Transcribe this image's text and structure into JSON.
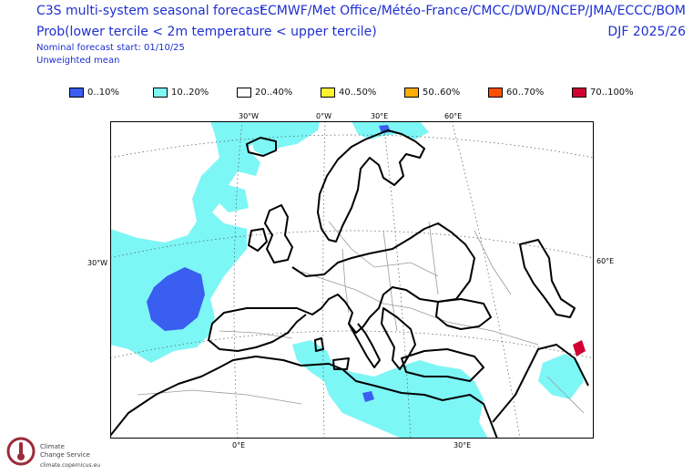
{
  "header": {
    "title_line1": "C3S multi-system seasonal forecast",
    "title_line2": "Prob(lower tercile < 2m temperature < upper tercile)",
    "nominal_start": "Nominal forecast start: 01/10/25",
    "weighting": "Unweighted mean",
    "systems": "ECMWF/Met Office/Météo-France/CMCC/DWD/NCEP/JMA/ECCC/BOM",
    "season": "DJF 2025/26"
  },
  "legend": [
    {
      "label": "0..10%",
      "color": "#3a5ef0"
    },
    {
      "label": "10..20%",
      "color": "#7df6f6"
    },
    {
      "label": "20..40%",
      "color": "#ffffff"
    },
    {
      "label": "40..50%",
      "color": "#fff12c"
    },
    {
      "label": "50..60%",
      "color": "#ffae00"
    },
    {
      "label": "60..70%",
      "color": "#ff4f00"
    },
    {
      "label": "70..100%",
      "color": "#d10030"
    }
  ],
  "map": {
    "top_ticks": [
      "30°W",
      "0°W",
      "30°E",
      "60°E"
    ],
    "left_tick": "30°W",
    "right_tick": "60°E",
    "bottom_ticks": [
      "0°E",
      "30°E"
    ],
    "colors": {
      "ocean": "#ffffff",
      "cyan": "#7df6f6",
      "blue": "#3a5ef0"
    }
  },
  "logo": {
    "line1": "Climate",
    "line2": "Change Service",
    "url": "climate.copernicus.eu",
    "icon": "copernicus-thermometer-icon"
  }
}
